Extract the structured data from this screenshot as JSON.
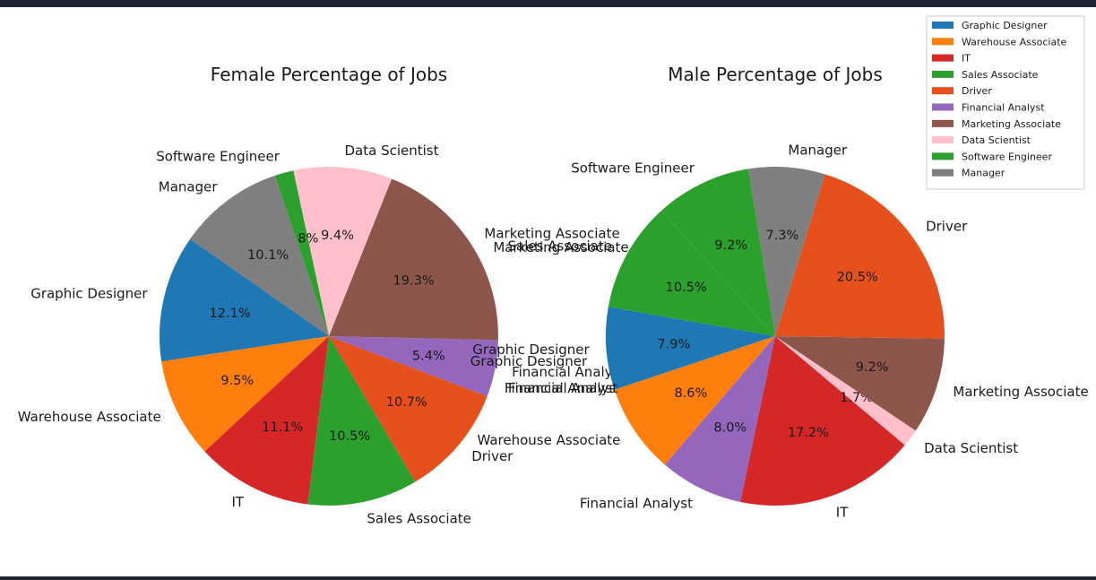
{
  "chart_data": [
    {
      "type": "pie",
      "title": "Female Percentage of Jobs",
      "slices": [
        {
          "label": "Graphic Designer",
          "value": 12.1,
          "value_label": "12.1%",
          "color": "#1f77b4"
        },
        {
          "label": "Warehouse Associate",
          "value": 9.5,
          "value_label": "9.5%",
          "color": "#ff7f0e"
        },
        {
          "label": "IT",
          "value": 11.1,
          "value_label": "11.1%",
          "color": "#d62728"
        },
        {
          "label": "Sales Associate",
          "value": 10.5,
          "value_label": "10.5%",
          "color": "#2ca02c"
        },
        {
          "label": "Driver",
          "value": 10.7,
          "value_label": "10.7%",
          "color": "#e6501c"
        },
        {
          "label": "Financial Analyst",
          "value": 5.4,
          "value_label": "5.4%",
          "color": "#9467bd"
        },
        {
          "label": "Marketing Associate",
          "value": 19.3,
          "value_label": "19.3%",
          "color": "#8c564b"
        },
        {
          "label": "Data Scientist",
          "value": 9.4,
          "value_label": "9.4%",
          "color": "#ffc0cb"
        },
        {
          "label": "Software Engineer",
          "value": 1.8,
          "value_label": "1.8%",
          "color": "#2ca02c"
        },
        {
          "label": "Manager",
          "value": 10.1,
          "value_label": "10.1%",
          "color": "#7f7f7f"
        }
      ],
      "extra_labels": [
        "Graphic Designer",
        "Financial Analyst"
      ]
    },
    {
      "type": "pie",
      "title": "Male Percentage of Jobs",
      "slices": [
        {
          "label": "Graphic Designer",
          "value": 7.9,
          "value_label": "7.9%",
          "color": "#1f77b4"
        },
        {
          "label": "Warehouse Associate",
          "value": 8.6,
          "value_label": "8.6%",
          "color": "#ff7f0e"
        },
        {
          "label": "Financial Analyst",
          "value": 8.0,
          "value_label": "8.0%",
          "color": "#9467bd"
        },
        {
          "label": "IT",
          "value": 17.2,
          "value_label": "17.2%",
          "color": "#d62728"
        },
        {
          "label": "Data Scientist",
          "value": 1.7,
          "value_label": "1.7%",
          "color": "#ffc0cb"
        },
        {
          "label": "Marketing Associate",
          "value": 9.2,
          "value_label": "9.2%",
          "color": "#8c564b"
        },
        {
          "label": "Driver",
          "value": 20.5,
          "value_label": "20.5%",
          "color": "#e6501c"
        },
        {
          "label": "Manager",
          "value": 7.3,
          "value_label": "7.3%",
          "color": "#7f7f7f"
        },
        {
          "label": "Software Engineer",
          "value": 9.2,
          "value_label": "9.2%",
          "color": "#2ca02c"
        },
        {
          "label": "Sales Associate",
          "value": 10.5,
          "value_label": "10.5%",
          "color": "#2ca02c"
        }
      ],
      "extra_labels": [
        "Marketing Associate",
        "Financial Analyst"
      ]
    }
  ],
  "legend": {
    "placement": "top-right",
    "entries": [
      {
        "label": "Graphic Designer",
        "color": "#1f77b4"
      },
      {
        "label": "Warehouse Associate",
        "color": "#ff7f0e"
      },
      {
        "label": "IT",
        "color": "#d62728"
      },
      {
        "label": "Sales Associate",
        "color": "#2ca02c"
      },
      {
        "label": "Driver",
        "color": "#e6501c"
      },
      {
        "label": "Financial Analyst",
        "color": "#9467bd"
      },
      {
        "label": "Marketing Associate",
        "color": "#8c564b"
      },
      {
        "label": "Data Scientist",
        "color": "#ffc0cb"
      },
      {
        "label": "Software Engineer",
        "color": "#2ca02c"
      },
      {
        "label": "Manager",
        "color": "#7f7f7f"
      }
    ]
  }
}
